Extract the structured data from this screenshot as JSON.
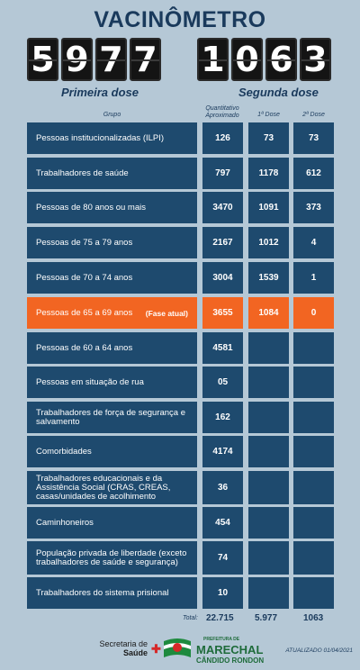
{
  "title": "VACINÔMETRO",
  "first_dose": {
    "label": "Primeira dose",
    "digits": [
      "5",
      "9",
      "7",
      "7"
    ]
  },
  "second_dose": {
    "label": "Segunda dose",
    "digits": [
      "1",
      "0",
      "6",
      "3"
    ]
  },
  "headers": {
    "grupo": "Grupo",
    "qty_line1": "Quantitativo",
    "qty_line2": "Aproximado",
    "dose1": "1ª Dose",
    "dose2": "2ª Dose"
  },
  "rows": [
    {
      "grupo": "Pessoas institucionalizadas (ILPI)",
      "qty": "126",
      "d1": "73",
      "d2": "73"
    },
    {
      "grupo": "Trabalhadores de saúde",
      "qty": "797",
      "d1": "1178",
      "d2": "612"
    },
    {
      "grupo": "Pessoas de 80 anos ou mais",
      "qty": "3470",
      "d1": "1091",
      "d2": "373"
    },
    {
      "grupo": "Pessoas de 75 a 79 anos",
      "qty": "2167",
      "d1": "1012",
      "d2": "4"
    },
    {
      "grupo": "Pessoas de 70 a 74 anos",
      "qty": "3004",
      "d1": "1539",
      "d2": "1"
    },
    {
      "grupo": "Pessoas de 65 a 69 anos",
      "fase": "(Fase atual)",
      "qty": "3655",
      "d1": "1084",
      "d2": "0"
    },
    {
      "grupo": "Pessoas de 60 a 64 anos",
      "qty": "4581",
      "d1": "",
      "d2": ""
    },
    {
      "grupo": "Pessoas em situação de rua",
      "qty": "05",
      "d1": "",
      "d2": ""
    },
    {
      "grupo": "Trabalhadores de força de segurança e salvamento",
      "qty": "162",
      "d1": "",
      "d2": ""
    },
    {
      "grupo": "Comorbidades",
      "qty": "4174",
      "d1": "",
      "d2": ""
    },
    {
      "grupo": "Trabalhadores educacionais e da Assistência Social (CRAS, CREAS, casas/unidades de acolhimento",
      "qty": "36",
      "d1": "",
      "d2": ""
    },
    {
      "grupo": "Caminhoneiros",
      "qty": "454",
      "d1": "",
      "d2": ""
    },
    {
      "grupo": "População privada de liberdade (exceto trabalhadores de saúde e segurança)",
      "qty": "74",
      "d1": "",
      "d2": ""
    },
    {
      "grupo": "Trabalhadores do sistema prisional",
      "qty": "10",
      "d1": "",
      "d2": ""
    }
  ],
  "totals": {
    "label": "Total:",
    "qty": "22.715",
    "d1": "5.977",
    "d2": "1063"
  },
  "footer": {
    "secretaria": "Secretaria de",
    "saude": "Saúde",
    "prefeitura": "PREFEITURA DE",
    "city1": "MARECHAL",
    "city2": "CÂNDIDO RONDON",
    "updated": "ATUALIZADO 01/04/2021"
  },
  "colors": {
    "accent": "#f26522",
    "cell": "#1e4a6e",
    "background": "#b5c8d6"
  }
}
